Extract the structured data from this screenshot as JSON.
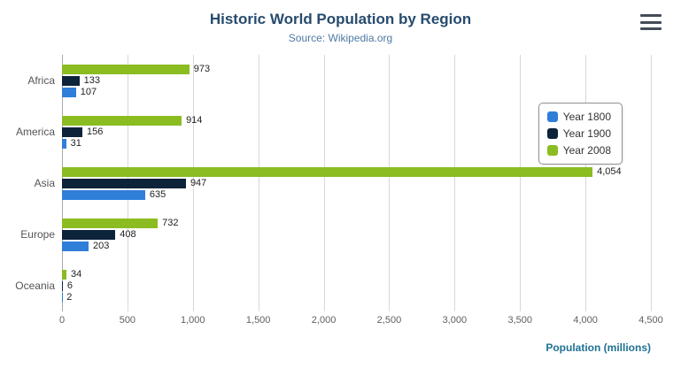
{
  "header": {
    "title": "Historic World Population by Region",
    "subtitle": "Source: Wikipedia.org"
  },
  "chart_data": {
    "type": "bar",
    "orientation": "horizontal",
    "categories": [
      "Africa",
      "America",
      "Asia",
      "Europe",
      "Oceania"
    ],
    "series": [
      {
        "name": "Year 1800",
        "color": "#2f7ed8",
        "values": [
          107,
          31,
          635,
          203,
          2
        ]
      },
      {
        "name": "Year 1900",
        "color": "#0d233a",
        "values": [
          133,
          156,
          947,
          408,
          6
        ]
      },
      {
        "name": "Year 2008",
        "color": "#8bbc21",
        "values": [
          973,
          914,
          4054,
          732,
          34
        ]
      }
    ],
    "title": "Historic World Population by Region",
    "subtitle": "Source: Wikipedia.org",
    "xlabel": "Population (millions)",
    "ylabel": "",
    "xlim": [
      0,
      4500
    ],
    "xtick_step": 500,
    "xtick_labels": [
      "0",
      "500",
      "1,000",
      "1,500",
      "2,000",
      "2,500",
      "3,000",
      "3,500",
      "4,000",
      "4,500"
    ],
    "grid": true,
    "legend_position": "right",
    "bar_display_order_top_to_bottom": [
      "Year 2008",
      "Year 1900",
      "Year 1800"
    ]
  },
  "menu": {
    "icon": "hamburger-icon"
  }
}
